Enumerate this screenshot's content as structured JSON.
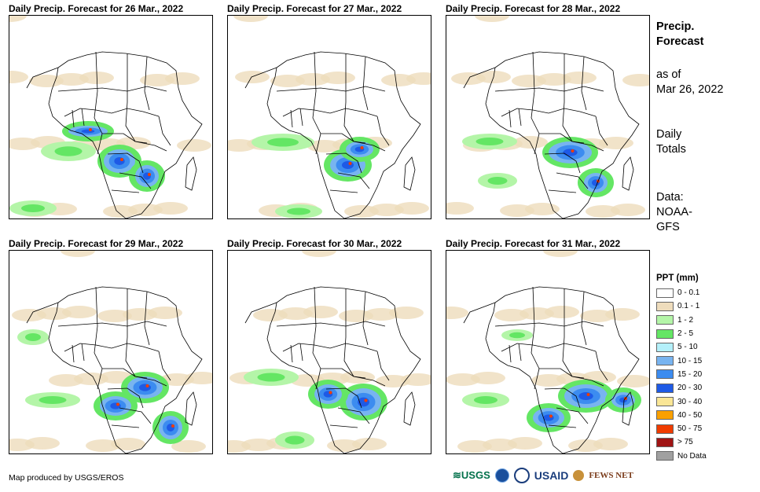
{
  "panels": [
    {
      "title": "Daily Precip. Forecast for 26 Mar., 2022"
    },
    {
      "title": "Daily Precip. Forecast for 27 Mar., 2022"
    },
    {
      "title": "Daily Precip. Forecast for 28 Mar., 2022"
    },
    {
      "title": "Daily Precip. Forecast for 29 Mar., 2022"
    },
    {
      "title": "Daily Precip. Forecast for 30 Mar., 2022"
    },
    {
      "title": "Daily Precip. Forecast for 31 Mar., 2022"
    }
  ],
  "side": {
    "heading1": "Precip.",
    "heading2": "Forecast",
    "asof1": "as of",
    "asof2": "Mar 26, 2022",
    "daily1": "Daily",
    "daily2": "Totals",
    "data1": "Data:",
    "data2": "NOAA-",
    "data3": "GFS"
  },
  "legend": {
    "title": "PPT (mm)",
    "items": [
      {
        "label": "0 - 0.1",
        "color": "#ffffff"
      },
      {
        "label": "0.1 - 1",
        "color": "#eedcbc"
      },
      {
        "label": "1 - 2",
        "color": "#b4f5a8"
      },
      {
        "label": "2 - 5",
        "color": "#64e664"
      },
      {
        "label": "5 - 10",
        "color": "#b4f0fa"
      },
      {
        "label": "10 - 15",
        "color": "#78b4f0"
      },
      {
        "label": "15 - 20",
        "color": "#3c8cf0"
      },
      {
        "label": "20 - 30",
        "color": "#1e5ae6"
      },
      {
        "label": "30 - 40",
        "color": "#fae696"
      },
      {
        "label": "40 - 50",
        "color": "#faa000"
      },
      {
        "label": "50 - 75",
        "color": "#f03c00"
      },
      {
        "label": "> 75",
        "color": "#a01414"
      },
      {
        "label": "No Data",
        "color": "#a0a0a0"
      }
    ]
  },
  "credit": "Map produced by USGS/EROS",
  "logos": {
    "usgs": "USGS",
    "usaid": "USAID",
    "fews": "FEWS NET"
  }
}
